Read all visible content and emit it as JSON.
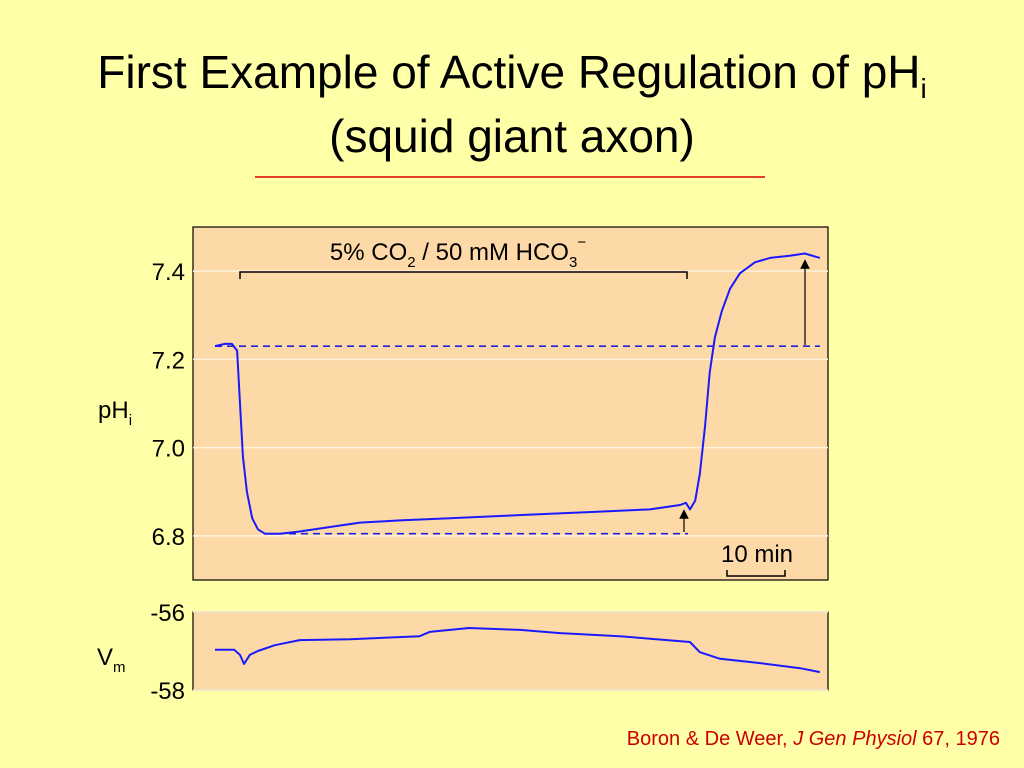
{
  "slide": {
    "title": {
      "text": "First Example of Active Regulation of pH",
      "subscript": "i"
    },
    "subtitle": "(squid giant axon)",
    "citation": {
      "authors": "Boron & De Weer, ",
      "journal": "J Gen Physiol",
      "details": " 67, 1976"
    }
  },
  "chart_data": [
    {
      "type": "line",
      "ylabel": {
        "text": "pH",
        "subscript": "i"
      },
      "annotation": [
        "5% CO",
        "2",
        " / 50 mM HCO",
        "3",
        "−"
      ],
      "scale_bar": {
        "label": "10 min",
        "value": 10
      },
      "xlim": [
        0,
        109.5
      ],
      "ylim": [
        6.7,
        7.5
      ],
      "yticks": [
        7.4,
        7.2,
        {
          "value": 7,
          "label": "7.0"
        },
        6.8
      ],
      "grid": true,
      "reference_lines": [
        7.23,
        6.805
      ],
      "reference_color": "#2222dd",
      "x": [
        3.8,
        5.5,
        6.7,
        7.6,
        8.1,
        8.6,
        9.3,
        10.2,
        11.2,
        12.4,
        15,
        18.4,
        23.6,
        28.8,
        35.7,
        44.3,
        52.9,
        61.6,
        70.2,
        78.8,
        84,
        85,
        85.7,
        86.6,
        87.4,
        88.3,
        89.1,
        90,
        91.2,
        92.6,
        94.3,
        96.9,
        99.5,
        102.9,
        105.5,
        108.1
      ],
      "series": [
        {
          "color": "#1a1aff",
          "values": [
            7.23,
            7.235,
            7.235,
            7.22,
            7.1,
            6.98,
            6.9,
            6.84,
            6.815,
            6.805,
            6.805,
            6.81,
            6.82,
            6.83,
            6.835,
            6.84,
            6.845,
            6.85,
            6.855,
            6.86,
            6.87,
            6.875,
            6.86,
            6.88,
            6.94,
            7.05,
            7.17,
            7.25,
            7.31,
            7.36,
            7.395,
            7.42,
            7.43,
            7.435,
            7.44,
            7.43
          ]
        }
      ]
    },
    {
      "type": "line",
      "ylabel": {
        "text": "V",
        "subscript": "m"
      },
      "xlim": [
        0,
        109.5
      ],
      "ylim": [
        -58,
        -56
      ],
      "yticks": [
        -56,
        -58
      ],
      "grid": true,
      "x": [
        3.8,
        7.1,
        8.1,
        8.8,
        9.8,
        11.2,
        14.1,
        18.4,
        27.1,
        39.1,
        40.8,
        47.6,
        56.4,
        63.3,
        73.6,
        85.7,
        87.4,
        90.9,
        97.8,
        104.7,
        108.1
      ],
      "series": [
        {
          "color": "#1a1aff",
          "values": [
            -56.97,
            -56.97,
            -57.1,
            -57.33,
            -57.1,
            -57.0,
            -56.85,
            -56.72,
            -56.7,
            -56.62,
            -56.51,
            -56.41,
            -56.46,
            -56.54,
            -56.62,
            -56.77,
            -57.03,
            -57.2,
            -57.31,
            -57.44,
            -57.54
          ]
        }
      ]
    }
  ]
}
